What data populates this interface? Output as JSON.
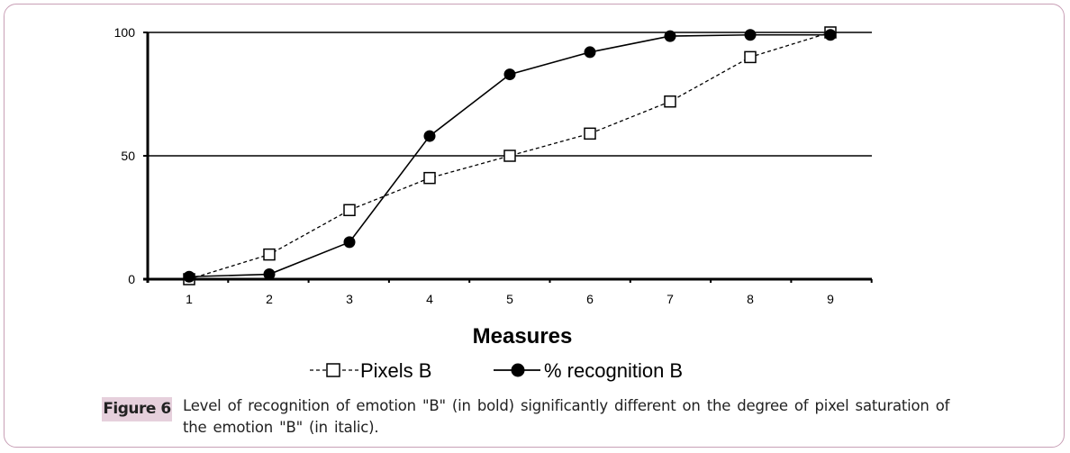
{
  "chart_data": {
    "type": "line",
    "title": "",
    "xlabel": "Measures",
    "ylabel": "",
    "x": [
      1,
      2,
      3,
      4,
      5,
      6,
      7,
      8,
      9
    ],
    "x_tick_labels": [
      "1",
      "2",
      "3",
      "4",
      "5",
      "6",
      "7",
      "8",
      "9"
    ],
    "y_tick_labels": [
      "0",
      "50",
      "100"
    ],
    "y_ticks": [
      0,
      50,
      100
    ],
    "ylim": [
      0,
      100
    ],
    "grid": "horizontal at 50 and 100",
    "legend_position": "bottom",
    "series": [
      {
        "name": "Pixels B",
        "marker": "open-square",
        "line": "dashed",
        "values": [
          0,
          10,
          28,
          41,
          50,
          59,
          72,
          90,
          100
        ]
      },
      {
        "name": "% recognition B",
        "marker": "filled-circle",
        "line": "solid",
        "values": [
          1,
          2,
          15,
          58,
          83,
          92,
          98.5,
          99,
          99
        ]
      }
    ]
  },
  "caption": {
    "label": "Figure 6",
    "text": "Level of recognition of emotion \"B\" (in bold) significantly different on the degree of pixel saturation of the emotion \"B\" (in italic)."
  },
  "colors": {
    "frame": "#c9a0b6",
    "label_bg": "#e6d0dc"
  }
}
